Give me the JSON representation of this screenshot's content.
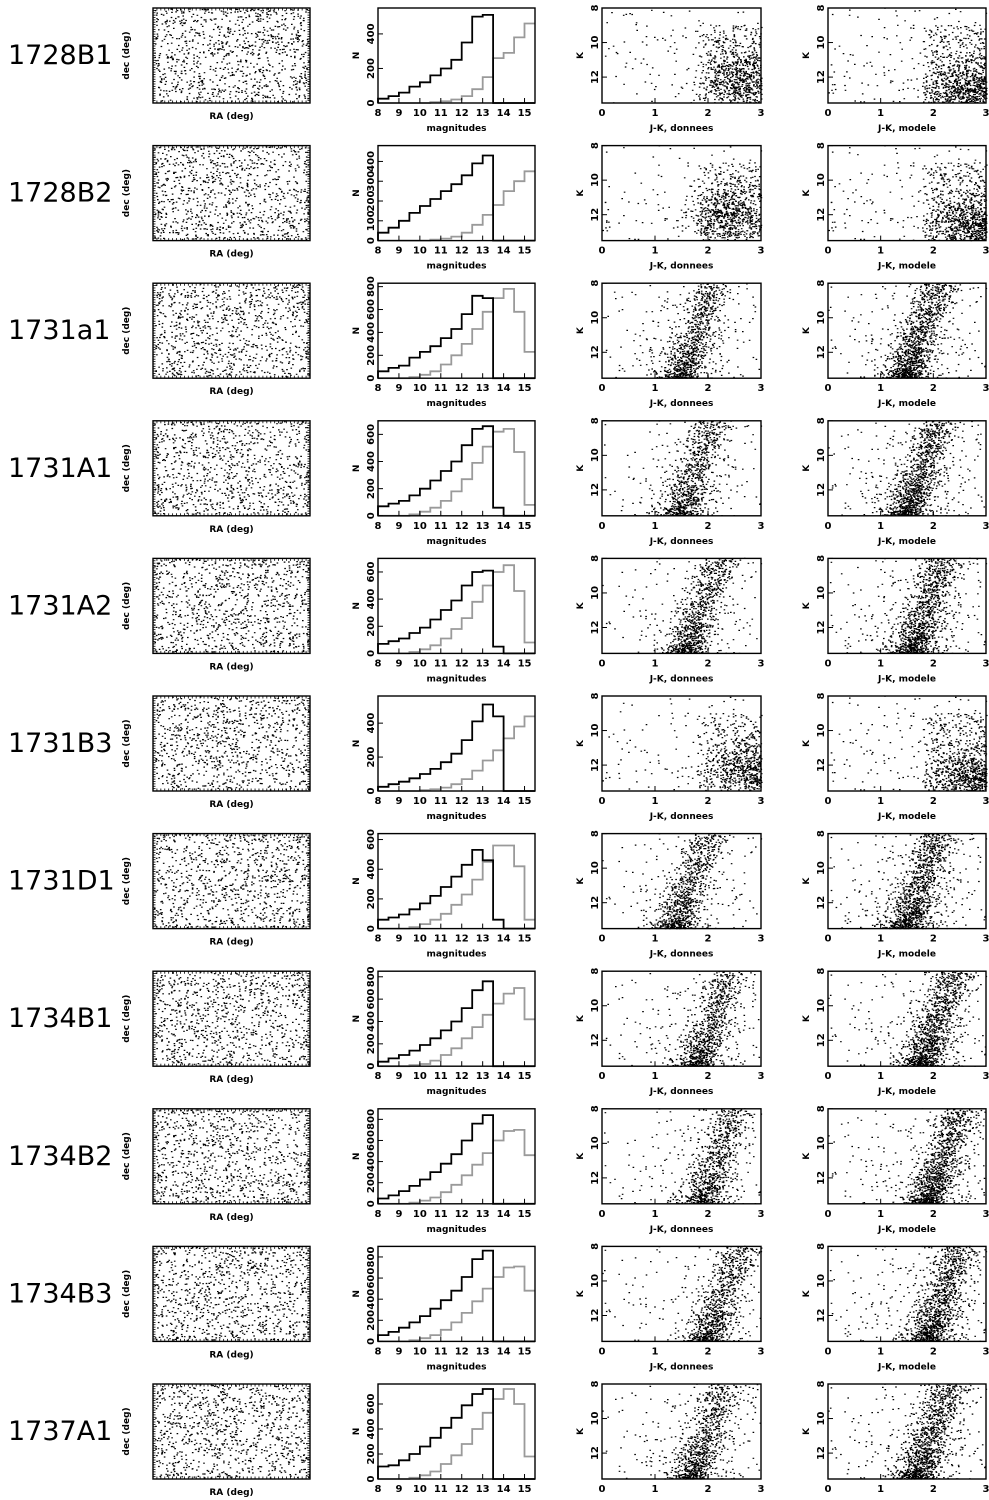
{
  "figure": {
    "rows": [
      "1728B1",
      "1728B2",
      "1731a1",
      "1731A1",
      "1731A2",
      "1731B3",
      "1731D1",
      "1734B1",
      "1734B2",
      "1734B3",
      "1737A1"
    ],
    "colors": {
      "observed": "#000000",
      "model": "#9a9a9a"
    }
  },
  "chart_data": [
    {
      "type": "scatter",
      "panel": "sky-map",
      "xlabel": "RA (deg)",
      "ylabel": "dec (deg)",
      "ticks": "unlabeled",
      "description_of_marks": "uniform random star positions, one panel per field"
    },
    {
      "type": "histogram",
      "panel": "magnitude-histogram",
      "xlabel": "magnitudes",
      "ylabel": "N",
      "xlim": [
        8,
        15.5
      ],
      "xticks": [
        8,
        9,
        10,
        11,
        12,
        13,
        14,
        15
      ],
      "bin_edges": [
        8,
        8.5,
        9,
        9.5,
        10,
        10.5,
        11,
        11.5,
        12,
        12.5,
        13,
        13.5,
        14,
        14.5,
        15,
        15.5
      ],
      "series": [
        {
          "color": "#000000"
        },
        {
          "color": "#9a9a9a"
        }
      ],
      "fields": [
        {
          "field": "1728B1",
          "ylim": [
            0,
            550
          ],
          "yticks": [
            0,
            200,
            400
          ],
          "observed": [
            25,
            40,
            60,
            95,
            120,
            160,
            200,
            250,
            350,
            500,
            510,
            0,
            0,
            0,
            0
          ],
          "model": [
            0,
            0,
            0,
            0,
            0,
            5,
            10,
            20,
            40,
            80,
            150,
            260,
            290,
            380,
            460
          ]
        },
        {
          "field": "1728B2",
          "ylim": [
            0,
            480
          ],
          "yticks": [
            0,
            100,
            200,
            300,
            400
          ],
          "observed": [
            40,
            65,
            100,
            140,
            175,
            210,
            250,
            285,
            330,
            390,
            430,
            0,
            0,
            0,
            0
          ],
          "model": [
            0,
            0,
            0,
            0,
            0,
            5,
            10,
            20,
            40,
            80,
            130,
            180,
            250,
            300,
            350
          ]
        },
        {
          "field": "1731a1",
          "ylim": [
            0,
            830
          ],
          "yticks": [
            0,
            200,
            400,
            600,
            800
          ],
          "observed": [
            60,
            90,
            110,
            180,
            230,
            280,
            350,
            430,
            560,
            720,
            700,
            0,
            0,
            0,
            0
          ],
          "model": [
            0,
            0,
            0,
            10,
            30,
            60,
            120,
            200,
            300,
            430,
            580,
            700,
            780,
            580,
            230
          ]
        },
        {
          "field": "1731A1",
          "ylim": [
            0,
            700
          ],
          "yticks": [
            0,
            200,
            400,
            600
          ],
          "observed": [
            70,
            90,
            110,
            150,
            200,
            260,
            330,
            400,
            520,
            640,
            660,
            60,
            0,
            0,
            0
          ],
          "model": [
            0,
            0,
            0,
            10,
            30,
            60,
            110,
            180,
            270,
            390,
            510,
            620,
            640,
            470,
            80
          ]
        },
        {
          "field": "1731A2",
          "ylim": [
            0,
            700
          ],
          "yticks": [
            0,
            200,
            400,
            600
          ],
          "observed": [
            70,
            90,
            110,
            150,
            190,
            250,
            320,
            390,
            500,
            600,
            610,
            50,
            0,
            0,
            0
          ],
          "model": [
            0,
            0,
            0,
            10,
            30,
            60,
            110,
            180,
            260,
            380,
            500,
            600,
            650,
            460,
            80
          ]
        },
        {
          "field": "1731B3",
          "ylim": [
            0,
            560
          ],
          "yticks": [
            0,
            200,
            400
          ],
          "observed": [
            25,
            40,
            55,
            75,
            100,
            130,
            170,
            220,
            300,
            410,
            510,
            440,
            0,
            0,
            0
          ],
          "model": [
            0,
            0,
            0,
            0,
            5,
            10,
            20,
            40,
            70,
            120,
            180,
            240,
            310,
            380,
            440
          ]
        },
        {
          "field": "1731D1",
          "ylim": [
            0,
            640
          ],
          "yticks": [
            0,
            200,
            400,
            600
          ],
          "observed": [
            60,
            75,
            95,
            130,
            170,
            220,
            280,
            350,
            430,
            530,
            460,
            60,
            0,
            0,
            0
          ],
          "model": [
            0,
            0,
            0,
            10,
            30,
            60,
            100,
            160,
            230,
            330,
            450,
            560,
            560,
            420,
            60
          ]
        },
        {
          "field": "1734B1",
          "ylim": [
            0,
            850
          ],
          "yticks": [
            0,
            200,
            400,
            600,
            800
          ],
          "observed": [
            40,
            70,
            100,
            140,
            190,
            250,
            320,
            400,
            520,
            680,
            760,
            0,
            0,
            0,
            0
          ],
          "model": [
            0,
            0,
            0,
            10,
            20,
            50,
            100,
            160,
            250,
            350,
            460,
            560,
            650,
            700,
            420
          ]
        },
        {
          "field": "1734B2",
          "ylim": [
            0,
            900
          ],
          "yticks": [
            0,
            200,
            400,
            600,
            800
          ],
          "observed": [
            50,
            80,
            120,
            170,
            230,
            300,
            380,
            470,
            600,
            760,
            840,
            0,
            0,
            0,
            0
          ],
          "model": [
            0,
            0,
            0,
            10,
            30,
            60,
            110,
            180,
            270,
            370,
            480,
            600,
            690,
            700,
            460
          ]
        },
        {
          "field": "1734B3",
          "ylim": [
            0,
            900
          ],
          "yticks": [
            0,
            200,
            400,
            600,
            800
          ],
          "observed": [
            60,
            90,
            130,
            180,
            240,
            310,
            390,
            480,
            610,
            780,
            860,
            0,
            0,
            0,
            0
          ],
          "model": [
            0,
            0,
            0,
            10,
            30,
            60,
            110,
            180,
            270,
            380,
            500,
            610,
            700,
            710,
            480
          ]
        },
        {
          "field": "1737A1",
          "ylim": [
            0,
            760
          ],
          "yticks": [
            0,
            200,
            400,
            600
          ],
          "observed": [
            100,
            110,
            150,
            200,
            260,
            330,
            410,
            490,
            590,
            680,
            720,
            0,
            0,
            0,
            0
          ],
          "model": [
            0,
            0,
            0,
            10,
            30,
            60,
            120,
            190,
            280,
            400,
            530,
            640,
            720,
            600,
            180
          ]
        }
      ]
    },
    {
      "type": "scatter",
      "panel": "color-magnitude-observed",
      "xlabel": "J-K, donnees",
      "ylabel": "K",
      "xlim": [
        0,
        3
      ],
      "ylim": [
        13.5,
        8
      ],
      "xticks": [
        0,
        1,
        2,
        3
      ],
      "yticks": [
        8,
        10,
        12
      ],
      "fields": [
        {
          "field": "1728B1",
          "clump_center": [
            2.6,
            12.2
          ],
          "red_branch": true
        },
        {
          "field": "1728B2",
          "clump_center": [
            2.4,
            12.0
          ],
          "red_branch": true
        },
        {
          "field": "1731a1",
          "clump_center": [
            1.5,
            12.0
          ],
          "red_branch": false
        },
        {
          "field": "1731A1",
          "clump_center": [
            1.5,
            12.0
          ],
          "red_branch": false
        },
        {
          "field": "1731A2",
          "clump_center": [
            1.6,
            12.0
          ],
          "red_branch": false
        },
        {
          "field": "1731B3",
          "clump_center": [
            2.8,
            12.2
          ],
          "red_branch": true
        },
        {
          "field": "1731D1",
          "clump_center": [
            1.4,
            12.0
          ],
          "red_branch": false
        },
        {
          "field": "1734B1",
          "clump_center": [
            1.8,
            12.4
          ],
          "red_branch": false
        },
        {
          "field": "1734B2",
          "clump_center": [
            1.9,
            12.2
          ],
          "red_branch": false
        },
        {
          "field": "1734B3",
          "clump_center": [
            2.0,
            12.4
          ],
          "red_branch": false
        },
        {
          "field": "1737A1",
          "clump_center": [
            1.7,
            12.5
          ],
          "red_branch": false
        }
      ]
    },
    {
      "type": "scatter",
      "panel": "color-magnitude-model",
      "xlabel": "J-K, modele",
      "ylabel": "K",
      "xlim": [
        0,
        3
      ],
      "ylim": [
        13.5,
        8
      ],
      "xticks": [
        0,
        1,
        2,
        3
      ],
      "yticks": [
        8,
        10,
        12
      ],
      "fields": [
        {
          "field": "1728B1",
          "clump_center": [
            2.7,
            12.8
          ],
          "red_branch": true
        },
        {
          "field": "1728B2",
          "clump_center": [
            2.8,
            12.6
          ],
          "red_branch": true
        },
        {
          "field": "1731a1",
          "clump_center": [
            1.5,
            12.6
          ],
          "red_branch": false
        },
        {
          "field": "1731A1",
          "clump_center": [
            1.5,
            12.6
          ],
          "red_branch": false
        },
        {
          "field": "1731A2",
          "clump_center": [
            1.6,
            12.6
          ],
          "red_branch": false
        },
        {
          "field": "1731B3",
          "clump_center": [
            2.8,
            12.8
          ],
          "red_branch": true
        },
        {
          "field": "1731D1",
          "clump_center": [
            1.5,
            12.6
          ],
          "red_branch": false
        },
        {
          "field": "1734B1",
          "clump_center": [
            1.8,
            12.8
          ],
          "red_branch": false
        },
        {
          "field": "1734B2",
          "clump_center": [
            1.9,
            12.8
          ],
          "red_branch": false
        },
        {
          "field": "1734B3",
          "clump_center": [
            1.9,
            12.8
          ],
          "red_branch": false
        },
        {
          "field": "1737A1",
          "clump_center": [
            1.7,
            12.9
          ],
          "red_branch": false
        }
      ]
    }
  ]
}
